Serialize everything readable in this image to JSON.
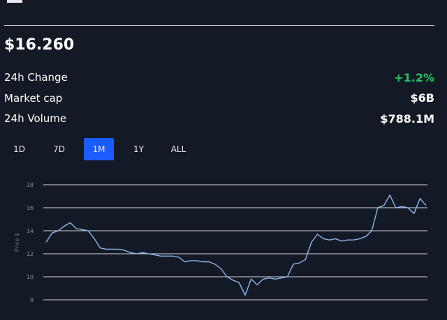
{
  "price": "$16.260",
  "stats": [
    {
      "label": "24h Change",
      "value": "+1.2%"
    },
    {
      "label": "Market cap",
      "value": "$6B"
    },
    {
      "label": "24h Volume",
      "value": "$788.1M"
    }
  ],
  "tabs": [
    "1D",
    "7D",
    "1M",
    "1Y",
    "ALL"
  ],
  "active_tab": 2,
  "chart_data": {
    "type": "line",
    "y_label": "Price $",
    "series": [
      {
        "name": "Price",
        "color": "#8fb8ec",
        "values": [
          13.0,
          13.8,
          14.0,
          14.4,
          14.7,
          14.2,
          14.1,
          14.0,
          13.3,
          12.5,
          12.4,
          12.4,
          12.4,
          12.3,
          12.1,
          12.0,
          12.1,
          12.0,
          11.9,
          11.8,
          11.8,
          11.8,
          11.7,
          11.3,
          11.4,
          11.4,
          11.3,
          11.3,
          11.1,
          10.7,
          10.0,
          9.7,
          9.5,
          8.4,
          9.8,
          9.3,
          9.8,
          9.9,
          9.8,
          9.9,
          10.0,
          11.1,
          11.2,
          11.5,
          13.0,
          13.7,
          13.3,
          13.2,
          13.3,
          13.1,
          13.2,
          13.2,
          13.3,
          13.5,
          14.0,
          16.0,
          16.2,
          17.1,
          16.0,
          16.1,
          16.0,
          15.5,
          16.8,
          16.2
        ]
      }
    ],
    "ylim": [
      8,
      18
    ],
    "yticks": [
      8,
      10,
      12,
      14,
      16,
      18
    ],
    "grid": true
  }
}
